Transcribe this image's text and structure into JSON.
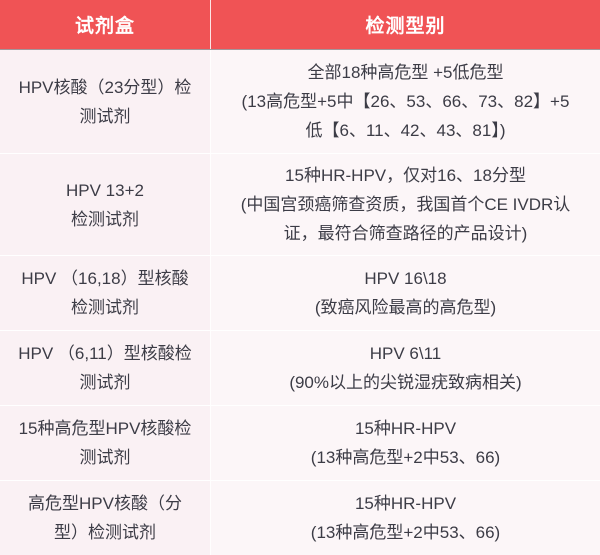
{
  "colors": {
    "header_bg": "#F05355",
    "header_text": "#FFFFFF",
    "body_bg_left": "#FAF1F4",
    "body_bg_right": "#FCF6F8",
    "body_text": "#3C3C46",
    "header_underline": "#A3959A",
    "row_separator": "#FFFFFF"
  },
  "table": {
    "header": {
      "col_kit": "试剂盒",
      "col_type": "检测型别"
    },
    "rows": [
      {
        "kit_lines": [
          "HPV核酸（23分型）检",
          "测试剂"
        ],
        "type_lines": [
          "全部18种高危型 +5低危型",
          "(13高危型+5中【26、53、66、73、82】+5",
          "低【6、11、42、43、81】)"
        ]
      },
      {
        "kit_lines": [
          "HPV 13+2",
          "检测试剂"
        ],
        "type_lines": [
          "15种HR-HPV，仅对16、18分型",
          "(中国宫颈癌筛查资质，我国首个CE IVDR认",
          "证，最符合筛查路径的产品设计)"
        ]
      },
      {
        "kit_lines": [
          "HPV （16,18）型核酸",
          "检测试剂"
        ],
        "type_lines": [
          "HPV 16\\18",
          "(致癌风险最高的高危型)"
        ]
      },
      {
        "kit_lines": [
          "HPV （6,11）型核酸检",
          "测试剂"
        ],
        "type_lines": [
          "HPV 6\\11",
          "(90%以上的尖锐湿疣致病相关)"
        ]
      },
      {
        "kit_lines": [
          "15种高危型HPV核酸检",
          "测试剂"
        ],
        "type_lines": [
          "15种HR-HPV",
          "(13种高危型+2中53、66)"
        ]
      },
      {
        "kit_lines": [
          "高危型HPV核酸（分",
          "型）检测试剂"
        ],
        "type_lines": [
          "15种HR-HPV",
          "(13种高危型+2中53、66)"
        ]
      }
    ]
  }
}
